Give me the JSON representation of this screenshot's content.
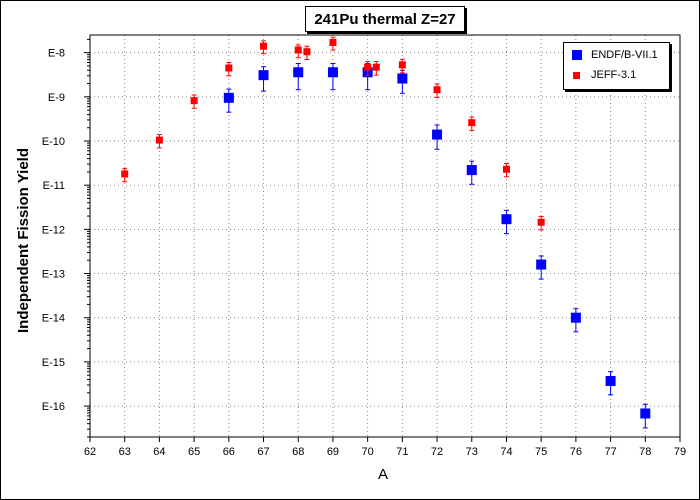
{
  "chart_data": {
    "type": "scatter",
    "title": "241Pu thermal Z=27",
    "xlabel": "A",
    "ylabel": "Independent Fission Yield",
    "xlim": [
      62,
      79
    ],
    "ylim_log10": [
      -16.7,
      -7.6
    ],
    "y_scale": "log",
    "grid": true,
    "legend_position": "top-right",
    "x_ticks": [
      "62",
      "63",
      "64",
      "65",
      "66",
      "67",
      "68",
      "69",
      "70",
      "71",
      "72",
      "73",
      "74",
      "75",
      "76",
      "77",
      "78",
      "79"
    ],
    "y_ticks": [
      {
        "label": "E-8",
        "exp": -8
      },
      {
        "label": "E-9",
        "exp": -9
      },
      {
        "label": "E-10",
        "exp": -10
      },
      {
        "label": "E-11",
        "exp": -11
      },
      {
        "label": "E-12",
        "exp": -12
      },
      {
        "label": "E-13",
        "exp": -13
      },
      {
        "label": "E-14",
        "exp": -14
      },
      {
        "label": "E-15",
        "exp": -15
      },
      {
        "label": "E-16",
        "exp": -16
      }
    ],
    "series": [
      {
        "name": "ENDF/B-VII.1",
        "color": "#0000ff",
        "marker": "square-large",
        "points": [
          {
            "x": 66,
            "y": 9.5e-10,
            "lo": 4.5e-10,
            "hi": 1.5e-09
          },
          {
            "x": 67,
            "y": 3.1e-09,
            "lo": 1.35e-09,
            "hi": 4.8e-09
          },
          {
            "x": 68,
            "y": 3.6e-09,
            "lo": 1.45e-09,
            "hi": 5.7e-09
          },
          {
            "x": 69,
            "y": 3.6e-09,
            "lo": 1.45e-09,
            "hi": 5.7e-09
          },
          {
            "x": 70,
            "y": 3.6e-09,
            "lo": 1.45e-09,
            "hi": 5.7e-09
          },
          {
            "x": 71,
            "y": 2.6e-09,
            "lo": 1.2e-09,
            "hi": 4e-09
          },
          {
            "x": 72,
            "y": 1.4e-10,
            "lo": 6.5e-11,
            "hi": 2.3e-10
          },
          {
            "x": 73,
            "y": 2.2e-11,
            "lo": 1.05e-11,
            "hi": 3.5e-11
          },
          {
            "x": 74,
            "y": 1.7e-12,
            "lo": 8e-13,
            "hi": 2.7e-12
          },
          {
            "x": 75,
            "y": 1.6e-13,
            "lo": 7.5e-14,
            "hi": 2.5e-13
          },
          {
            "x": 76,
            "y": 1e-14,
            "lo": 4.8e-15,
            "hi": 1.6e-14
          },
          {
            "x": 77,
            "y": 3.7e-16,
            "lo": 1.8e-16,
            "hi": 6e-16
          },
          {
            "x": 78,
            "y": 6.8e-17,
            "lo": 3.2e-17,
            "hi": 1.1e-16
          }
        ]
      },
      {
        "name": "JEFF-3.1",
        "color": "#ff0000",
        "marker": "square-small",
        "points": [
          {
            "x": 63,
            "y": 1.8e-11,
            "lo": 1.2e-11,
            "hi": 2.4e-11
          },
          {
            "x": 64,
            "y": 1.05e-10,
            "lo": 7e-11,
            "hi": 1.4e-10
          },
          {
            "x": 65,
            "y": 8.2e-10,
            "lo": 5.5e-10,
            "hi": 1.1e-09
          },
          {
            "x": 66,
            "y": 4.5e-09,
            "lo": 3e-09,
            "hi": 6e-09
          },
          {
            "x": 67,
            "y": 1.4e-08,
            "lo": 9.5e-09,
            "hi": 1.85e-08
          },
          {
            "x": 68,
            "y": 1.15e-08,
            "lo": 7.7e-09,
            "hi": 1.5e-08
          },
          {
            "x": 68.25,
            "y": 1.05e-08,
            "lo": 7e-09,
            "hi": 1.4e-08
          },
          {
            "x": 69,
            "y": 1.7e-08,
            "lo": 1.15e-08,
            "hi": 2.25e-08
          },
          {
            "x": 70,
            "y": 4.7e-09,
            "lo": 3.1e-09,
            "hi": 6.3e-09
          },
          {
            "x": 70.25,
            "y": 4.7e-09,
            "lo": 3.1e-09,
            "hi": 6.3e-09
          },
          {
            "x": 71,
            "y": 5.3e-09,
            "lo": 3.5e-09,
            "hi": 7.1e-09
          },
          {
            "x": 72,
            "y": 1.45e-09,
            "lo": 9.7e-10,
            "hi": 1.95e-09
          },
          {
            "x": 73,
            "y": 2.6e-10,
            "lo": 1.75e-10,
            "hi": 3.5e-10
          },
          {
            "x": 74,
            "y": 2.3e-11,
            "lo": 1.55e-11,
            "hi": 3.1e-11
          },
          {
            "x": 75,
            "y": 1.45e-12,
            "lo": 9.7e-13,
            "hi": 1.95e-12
          }
        ]
      }
    ]
  }
}
